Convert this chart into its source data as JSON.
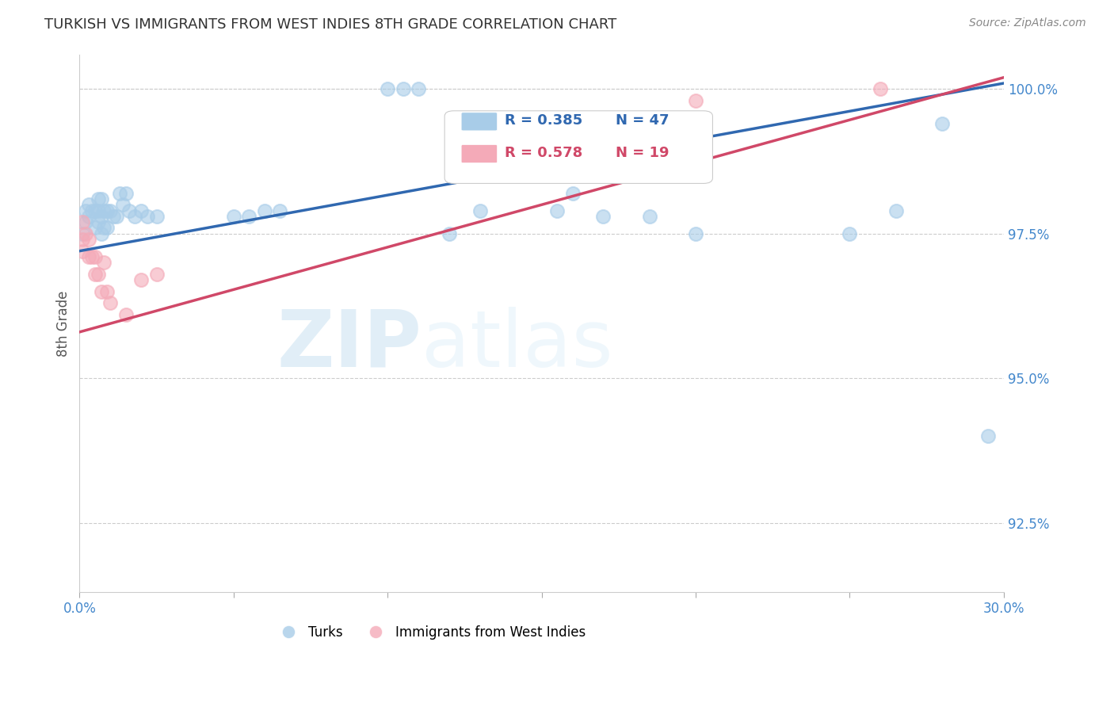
{
  "title": "TURKISH VS IMMIGRANTS FROM WEST INDIES 8TH GRADE CORRELATION CHART",
  "source": "Source: ZipAtlas.com",
  "ylabel": "8th Grade",
  "xlim": [
    0.0,
    0.3
  ],
  "ylim": [
    0.913,
    1.006
  ],
  "yticks": [
    0.925,
    0.95,
    0.975,
    1.0
  ],
  "xticks": [
    0.0,
    0.05,
    0.1,
    0.15,
    0.2,
    0.25,
    0.3
  ],
  "blue_r": "0.385",
  "blue_n": "47",
  "pink_r": "0.578",
  "pink_n": "19",
  "blue_color": "#a8cce8",
  "pink_color": "#f4aab8",
  "blue_line_color": "#3068b0",
  "pink_line_color": "#d04868",
  "axis_color": "#4488cc",
  "title_color": "#333333",
  "background_color": "#ffffff",
  "legend_label_blue": "Turks",
  "legend_label_pink": "Immigrants from West Indies",
  "blue_line_x0": 0.0,
  "blue_line_y0": 0.972,
  "blue_line_x1": 0.3,
  "blue_line_y1": 1.001,
  "pink_line_x0": 0.0,
  "pink_line_y0": 0.958,
  "pink_line_x1": 0.3,
  "pink_line_y1": 1.002,
  "blue_x": [
    0.001,
    0.002,
    0.002,
    0.003,
    0.003,
    0.004,
    0.005,
    0.005,
    0.006,
    0.006,
    0.006,
    0.007,
    0.007,
    0.007,
    0.008,
    0.008,
    0.009,
    0.009,
    0.01,
    0.011,
    0.012,
    0.013,
    0.014,
    0.015,
    0.016,
    0.018,
    0.02,
    0.022,
    0.025,
    0.05,
    0.055,
    0.06,
    0.065,
    0.1,
    0.105,
    0.11,
    0.12,
    0.13,
    0.155,
    0.16,
    0.17,
    0.185,
    0.2,
    0.25,
    0.265,
    0.28,
    0.295
  ],
  "blue_y": [
    0.975,
    0.977,
    0.979,
    0.978,
    0.98,
    0.979,
    0.976,
    0.979,
    0.977,
    0.979,
    0.981,
    0.975,
    0.978,
    0.981,
    0.976,
    0.979,
    0.976,
    0.979,
    0.979,
    0.978,
    0.978,
    0.982,
    0.98,
    0.982,
    0.979,
    0.978,
    0.979,
    0.978,
    0.978,
    0.978,
    0.978,
    0.979,
    0.979,
    1.0,
    1.0,
    1.0,
    0.975,
    0.979,
    0.979,
    0.982,
    0.978,
    0.978,
    0.975,
    0.975,
    0.979,
    0.994,
    0.94
  ],
  "pink_x": [
    0.001,
    0.001,
    0.001,
    0.002,
    0.003,
    0.003,
    0.004,
    0.005,
    0.005,
    0.006,
    0.007,
    0.008,
    0.009,
    0.01,
    0.015,
    0.02,
    0.025,
    0.2,
    0.26
  ],
  "pink_y": [
    0.972,
    0.974,
    0.977,
    0.975,
    0.971,
    0.974,
    0.971,
    0.968,
    0.971,
    0.968,
    0.965,
    0.97,
    0.965,
    0.963,
    0.961,
    0.967,
    0.968,
    0.998,
    1.0
  ]
}
